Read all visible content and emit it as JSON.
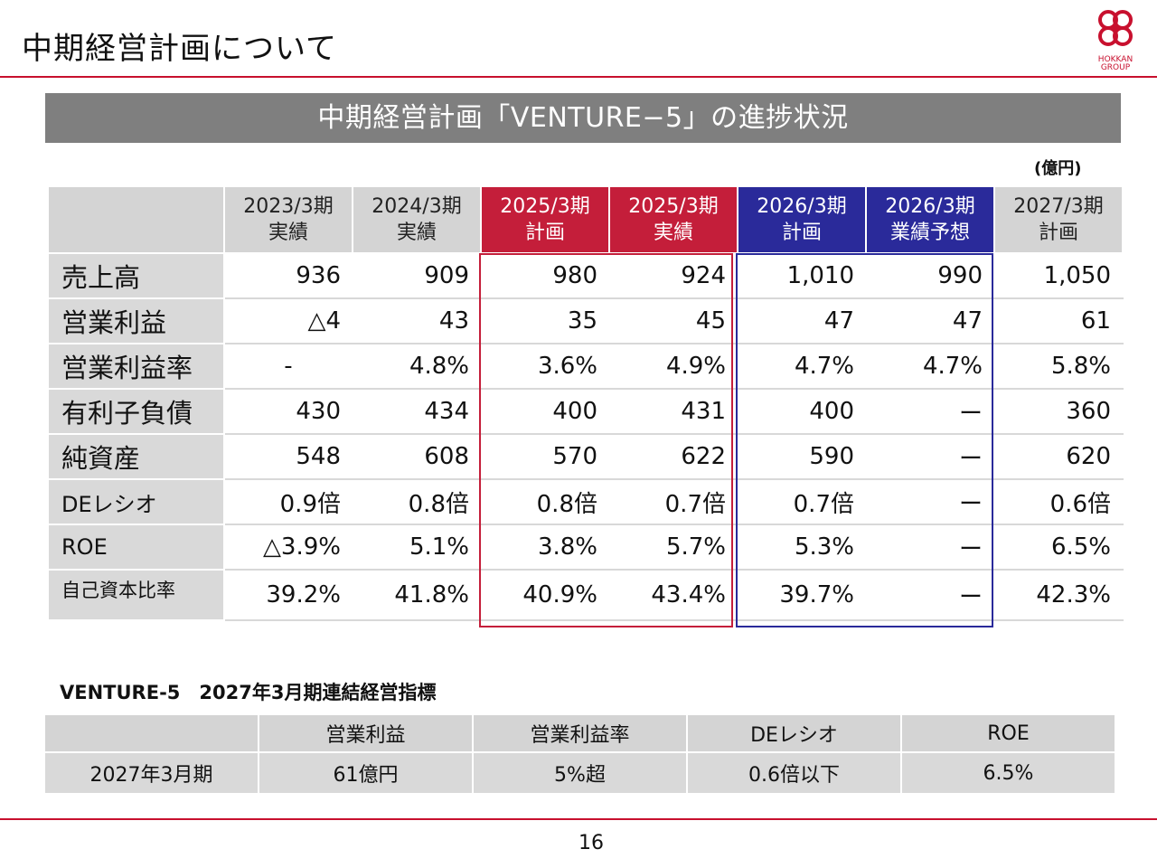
{
  "page_title": "中期経営計画について",
  "logo": {
    "text_line1": "HOKKAN",
    "text_line2": "GROUP",
    "mark": "flower-logo",
    "color": "#c8102e"
  },
  "banner_title": "中期経営計画「VENTURE−5」の進捗状況",
  "unit_label": "(億円)",
  "columns": [
    {
      "line1": "2023/3期",
      "line2": "実績",
      "style": "gray"
    },
    {
      "line1": "2024/3期",
      "line2": "実績",
      "style": "gray"
    },
    {
      "line1": "2025/3期",
      "line2": "計画",
      "style": "red"
    },
    {
      "line1": "2025/3期",
      "line2": "実績",
      "style": "red"
    },
    {
      "line1": "2026/3期",
      "line2": "計画",
      "style": "navy"
    },
    {
      "line1": "2026/3期",
      "line2": "業績予想",
      "style": "navy"
    },
    {
      "line1": "2027/3期",
      "line2": "計画",
      "style": "gray"
    }
  ],
  "rows": [
    {
      "label": "売上高",
      "values": [
        "936",
        "909",
        "980",
        "924",
        "1,010",
        "990",
        "1,050"
      ]
    },
    {
      "label": "営業利益",
      "values": [
        "△4",
        "43",
        "35",
        "45",
        "47",
        "47",
        "61"
      ]
    },
    {
      "label": "営業利益率",
      "values": [
        "-",
        "4.8%",
        "3.6%",
        "4.9%",
        "4.7%",
        "4.7%",
        "5.8%"
      ]
    },
    {
      "label": "有利子負債",
      "values": [
        "430",
        "434",
        "400",
        "431",
        "400",
        "ー",
        "360"
      ]
    },
    {
      "label": "純資産",
      "values": [
        "548",
        "608",
        "570",
        "622",
        "590",
        "ー",
        "620"
      ]
    },
    {
      "label": "DEレシオ",
      "values": [
        "0.9倍",
        "0.8倍",
        "0.8倍",
        "0.7倍",
        "0.7倍",
        "ー",
        "0.6倍"
      ]
    },
    {
      "label": "ROE",
      "values": [
        "△3.9%",
        "5.1%",
        "3.8%",
        "5.7%",
        "5.3%",
        "ー",
        "6.5%"
      ]
    },
    {
      "label": "自己資本比率",
      "values": [
        "39.2%",
        "41.8%",
        "40.9%",
        "43.4%",
        "39.7%",
        "ー",
        "42.3%"
      ]
    }
  ],
  "kpi": {
    "title": "VENTURE-5　2027年3月期連結経営指標",
    "headers": [
      "",
      "営業利益",
      "営業利益率",
      "DEレシオ",
      "ROE"
    ],
    "values": [
      "2027年3月期",
      "61億円",
      "5%超",
      "0.6倍以下",
      "6.5%"
    ]
  },
  "page_number": "16",
  "colors": {
    "accent_red": "#c41e3a",
    "accent_navy": "#2a2a9a",
    "header_gray": "#d4d4d4",
    "banner_gray": "#7f7f7f"
  }
}
